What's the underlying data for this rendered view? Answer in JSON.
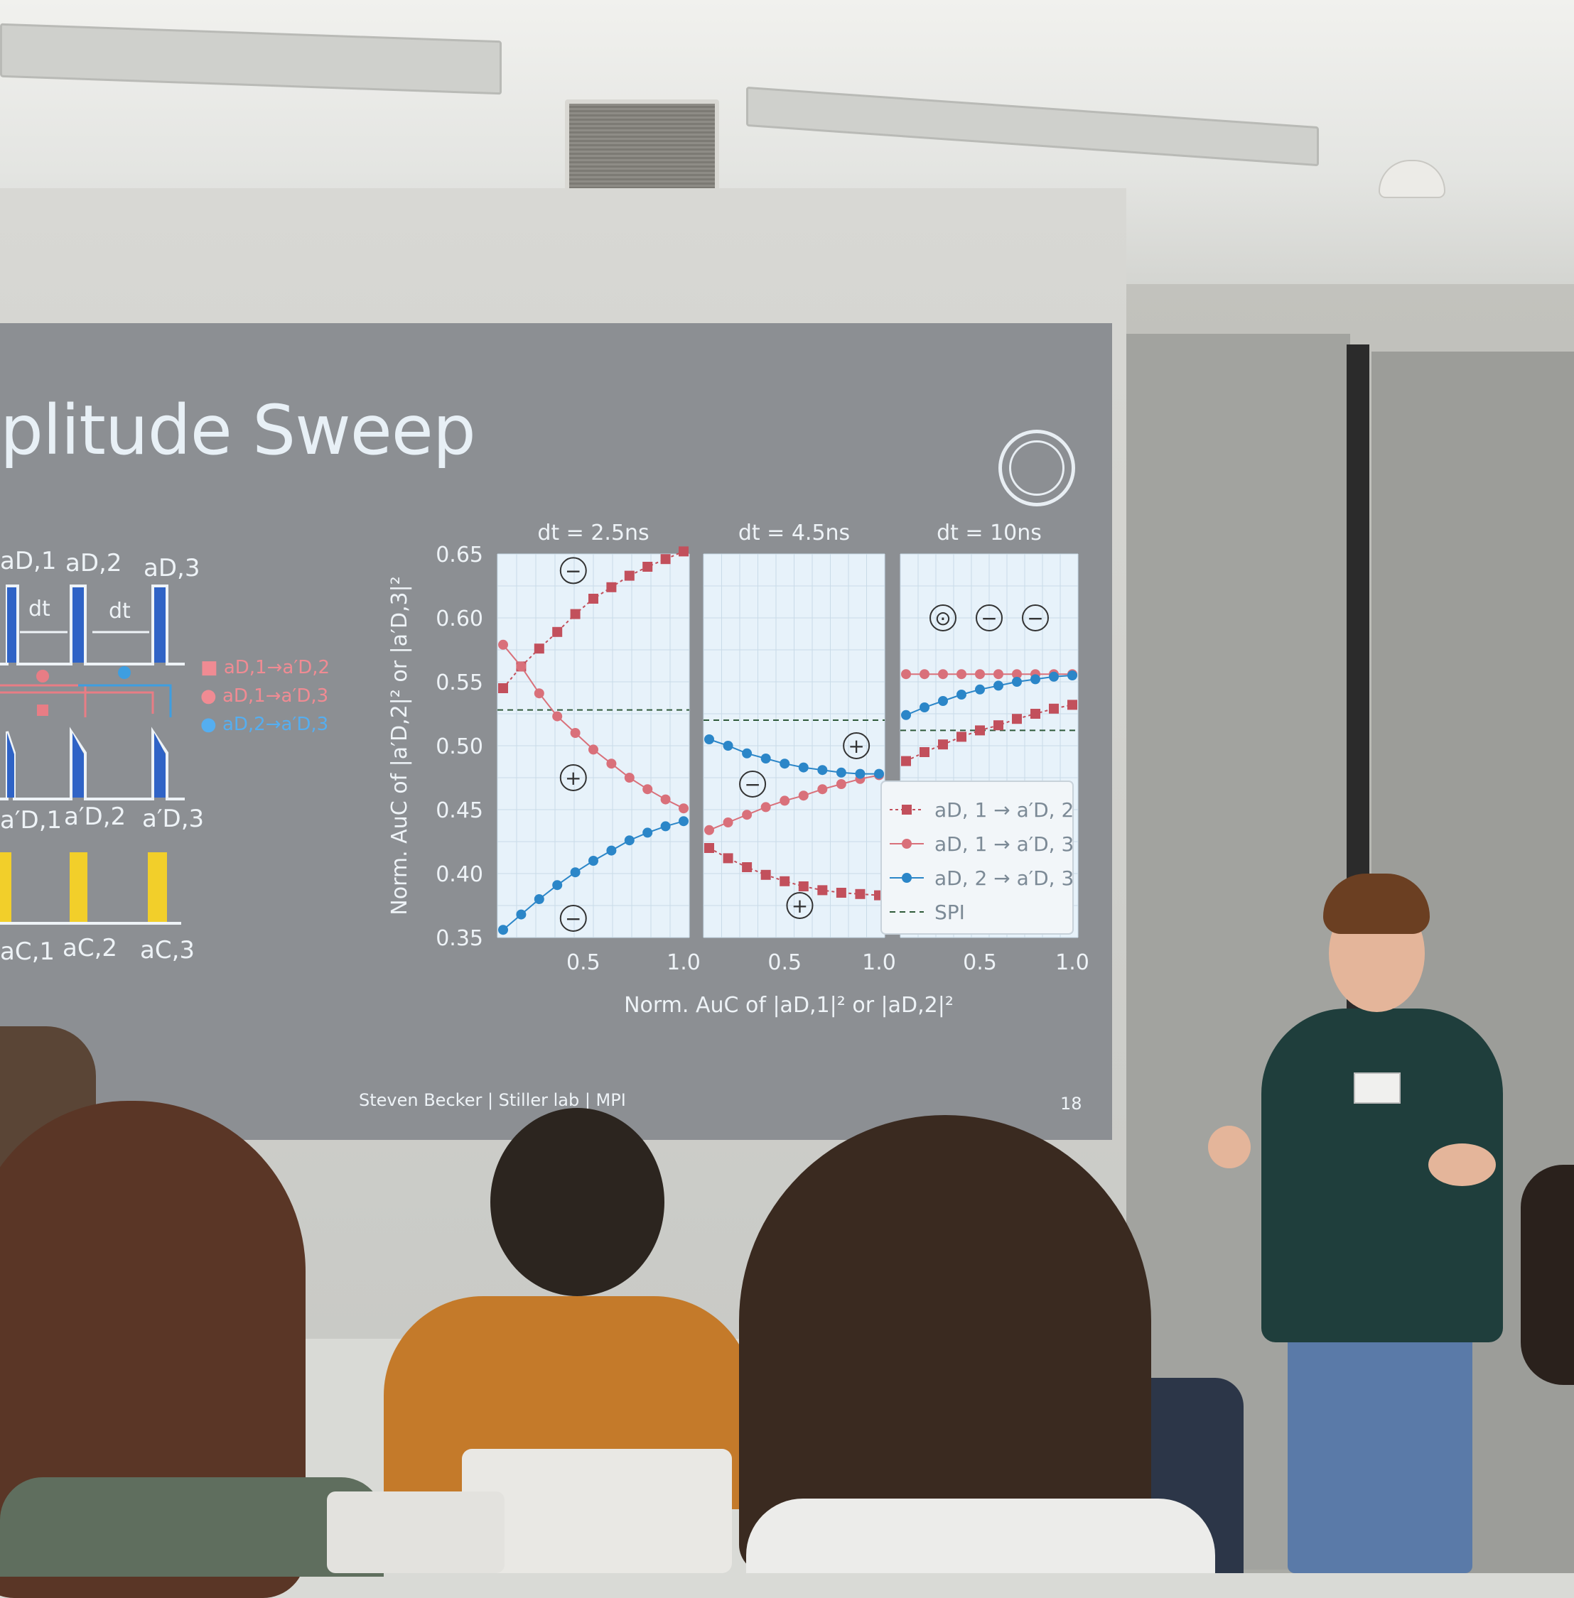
{
  "slide": {
    "title": "plitude Sweep",
    "footer": "Steven Becker | Stiller lab | MPI",
    "page_number": "18"
  },
  "diagram": {
    "drive_labels": [
      "aD,1",
      "aD,2",
      "aD,3"
    ],
    "dt_label": "dt",
    "output_labels": [
      "a′D,1",
      "a′D,2",
      "a′D,3"
    ],
    "control_labels": [
      "aC,1",
      "aC,2",
      "aC,3"
    ],
    "legend": [
      "aD,1→a′D,2",
      "aD,1→a′D,3",
      "aD,2→a′D,3"
    ]
  },
  "chart_data": {
    "type": "scatter",
    "ylabel": "Norm. AuC of |a′D,2|² or |a′D,3|²",
    "xlabel": "Norm. AuC of |aD,1|² or |aD,2|²",
    "ylim": [
      0.35,
      0.65
    ],
    "yticks": [
      "0.35",
      "0.40",
      "0.45",
      "0.50",
      "0.55",
      "0.60",
      "0.65"
    ],
    "xticks": [
      "0.5",
      "1.0"
    ],
    "legend": [
      "aD, 1 → a′D, 2",
      "aD, 1 → a′D, 3",
      "aD, 2 → a′D, 3",
      "SPI"
    ],
    "colors": {
      "red": "#c2505c",
      "pink": "#d9707a",
      "blue": "#2b86c8",
      "bg": "#e7f2fa"
    },
    "panels": [
      {
        "title": "dt = 2.5ns",
        "xlim": [
          0.1,
          1.0
        ],
        "spi": 0.528,
        "signs": [
          {
            "s": "−",
            "x": 0.45,
            "y": 0.637
          },
          {
            "s": "+",
            "x": 0.45,
            "y": 0.475
          },
          {
            "s": "−",
            "x": 0.45,
            "y": 0.365
          }
        ],
        "series": [
          {
            "x": [
              0.1,
              0.19,
              0.28,
              0.37,
              0.46,
              0.55,
              0.64,
              0.73,
              0.82,
              0.91,
              1.0
            ],
            "y": [
              0.545,
              0.562,
              0.576,
              0.589,
              0.603,
              0.615,
              0.624,
              0.633,
              0.64,
              0.646,
              0.652
            ]
          },
          {
            "x": [
              0.1,
              0.19,
              0.28,
              0.37,
              0.46,
              0.55,
              0.64,
              0.73,
              0.82,
              0.91,
              1.0
            ],
            "y": [
              0.579,
              0.562,
              0.541,
              0.523,
              0.51,
              0.497,
              0.486,
              0.475,
              0.466,
              0.458,
              0.451
            ]
          },
          {
            "x": [
              0.1,
              0.19,
              0.28,
              0.37,
              0.46,
              0.55,
              0.64,
              0.73,
              0.82,
              0.91,
              1.0
            ],
            "y": [
              0.356,
              0.368,
              0.38,
              0.391,
              0.401,
              0.41,
              0.418,
              0.426,
              0.432,
              0.437,
              0.441
            ]
          }
        ]
      },
      {
        "title": "dt = 4.5ns",
        "xlim": [
          0.1,
          1.0
        ],
        "spi": 0.52,
        "signs": [
          {
            "s": "+",
            "x": 0.88,
            "y": 0.5
          },
          {
            "s": "−",
            "x": 0.33,
            "y": 0.47
          },
          {
            "s": "+",
            "x": 0.58,
            "y": 0.375
          }
        ],
        "series": [
          {
            "x": [
              0.1,
              0.2,
              0.3,
              0.4,
              0.5,
              0.6,
              0.7,
              0.8,
              0.9,
              1.0
            ],
            "y": [
              0.42,
              0.412,
              0.405,
              0.399,
              0.394,
              0.39,
              0.387,
              0.385,
              0.384,
              0.383
            ]
          },
          {
            "x": [
              0.1,
              0.2,
              0.3,
              0.4,
              0.5,
              0.6,
              0.7,
              0.8,
              0.9,
              1.0
            ],
            "y": [
              0.434,
              0.44,
              0.446,
              0.452,
              0.457,
              0.461,
              0.466,
              0.47,
              0.474,
              0.477
            ]
          },
          {
            "x": [
              0.1,
              0.2,
              0.3,
              0.4,
              0.5,
              0.6,
              0.7,
              0.8,
              0.9,
              1.0
            ],
            "y": [
              0.505,
              0.5,
              0.494,
              0.49,
              0.486,
              0.483,
              0.481,
              0.479,
              0.478,
              0.478
            ]
          }
        ]
      },
      {
        "title": "dt = 10ns",
        "xlim": [
          0.1,
          1.0
        ],
        "spi": 0.512,
        "signs": [
          {
            "s": "⊙",
            "x": 0.3,
            "y": 0.6
          },
          {
            "s": "−",
            "x": 0.55,
            "y": 0.6
          },
          {
            "s": "−",
            "x": 0.8,
            "y": 0.6
          }
        ],
        "series": [
          {
            "x": [
              0.1,
              0.2,
              0.3,
              0.4,
              0.5,
              0.6,
              0.7,
              0.8,
              0.9,
              1.0
            ],
            "y": [
              0.488,
              0.495,
              0.501,
              0.507,
              0.512,
              0.516,
              0.521,
              0.525,
              0.529,
              0.532
            ]
          },
          {
            "x": [
              0.1,
              0.2,
              0.3,
              0.4,
              0.5,
              0.6,
              0.7,
              0.8,
              0.9,
              1.0
            ],
            "y": [
              0.556,
              0.556,
              0.556,
              0.556,
              0.556,
              0.556,
              0.556,
              0.556,
              0.556,
              0.556
            ]
          },
          {
            "x": [
              0.1,
              0.2,
              0.3,
              0.4,
              0.5,
              0.6,
              0.7,
              0.8,
              0.9,
              1.0
            ],
            "y": [
              0.524,
              0.53,
              0.535,
              0.54,
              0.544,
              0.547,
              0.55,
              0.552,
              0.554,
              0.555
            ]
          }
        ]
      }
    ]
  }
}
